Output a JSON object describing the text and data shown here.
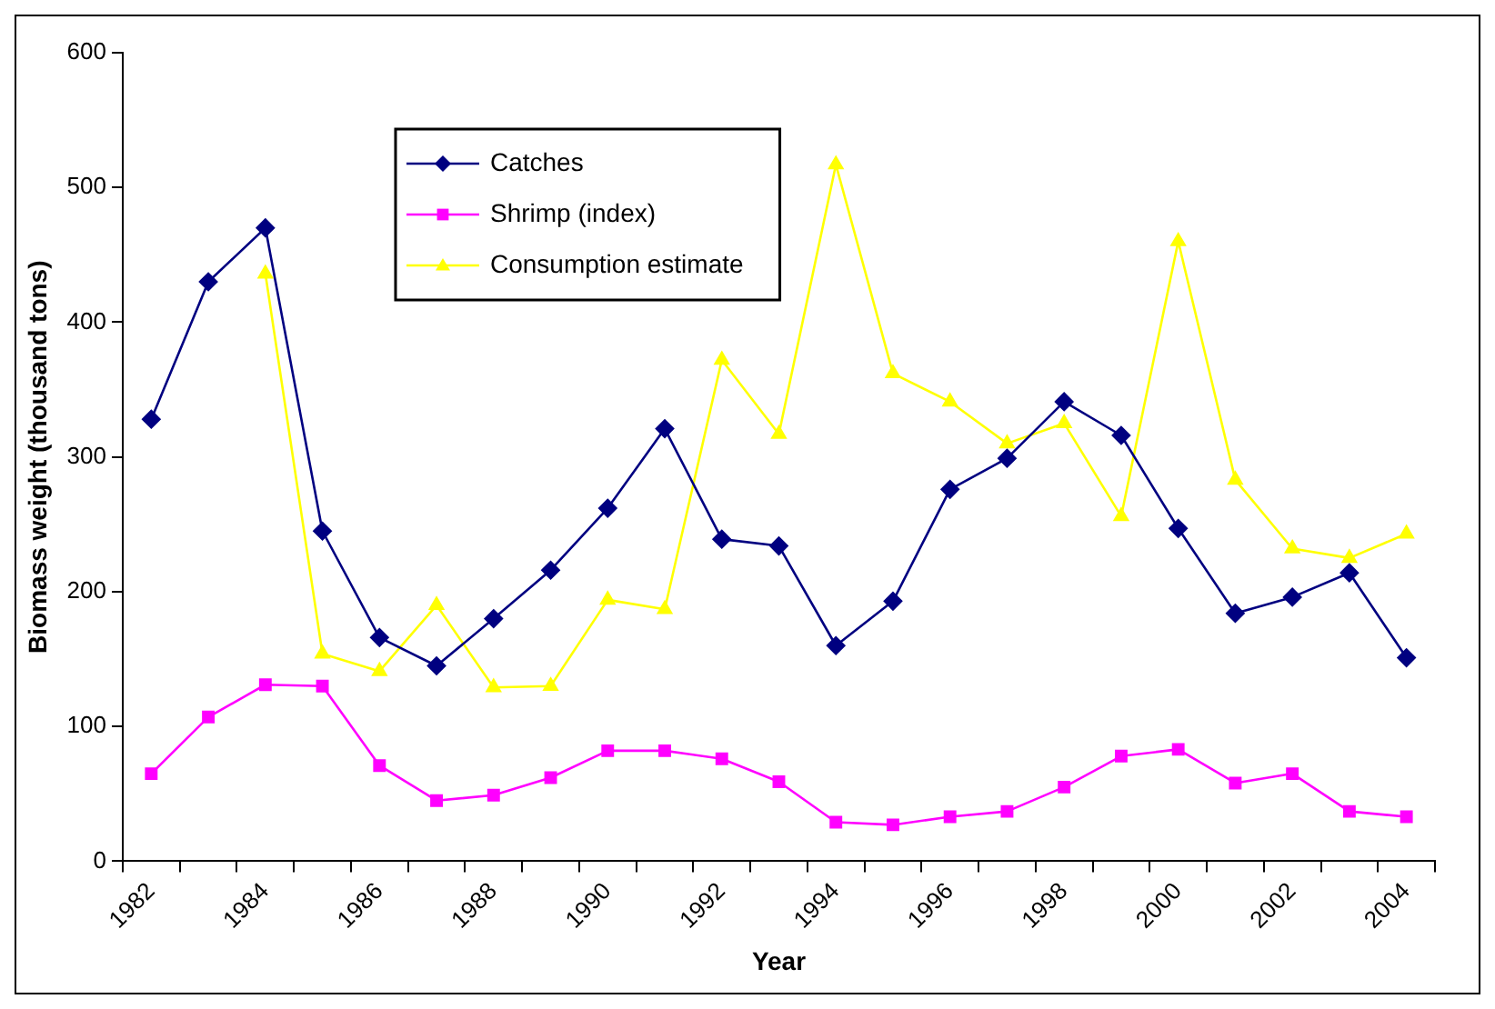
{
  "chart_data": {
    "type": "line",
    "xlabel": "Year",
    "ylabel": "Biomass weight (thousand tons)",
    "categories": [
      "1982",
      null,
      "1984",
      null,
      "1986",
      null,
      "1988",
      null,
      "1990",
      null,
      "1992",
      null,
      "1994",
      null,
      "1996",
      null,
      "1998",
      null,
      "2000",
      null,
      "2002",
      null,
      "2004"
    ],
    "series": [
      {
        "name": "Catches",
        "color": "#000080",
        "marker": "diamond",
        "values": [
          328,
          430,
          470,
          245,
          166,
          145,
          180,
          216,
          262,
          321,
          239,
          234,
          160,
          193,
          276,
          299,
          341,
          316,
          247,
          184,
          196,
          214,
          151
        ]
      },
      {
        "name": "Shrimp (index)",
        "color": "#ff00ff",
        "marker": "square",
        "values": [
          65,
          107,
          131,
          130,
          71,
          45,
          49,
          62,
          82,
          82,
          76,
          59,
          29,
          27,
          33,
          37,
          55,
          78,
          83,
          58,
          65,
          37,
          33
        ]
      },
      {
        "name": "Consumption estimate",
        "color": "#ffff00",
        "marker": "triangle",
        "values": [
          null,
          null,
          436,
          154,
          141,
          190,
          129,
          130,
          194,
          187,
          372,
          317,
          517,
          362,
          341,
          310,
          325,
          256,
          460,
          283,
          232,
          225,
          243
        ]
      }
    ],
    "ylim": [
      0,
      600
    ],
    "yticks": [
      0,
      100,
      200,
      300,
      400,
      500,
      600
    ],
    "grid": false,
    "legend": "top left"
  }
}
